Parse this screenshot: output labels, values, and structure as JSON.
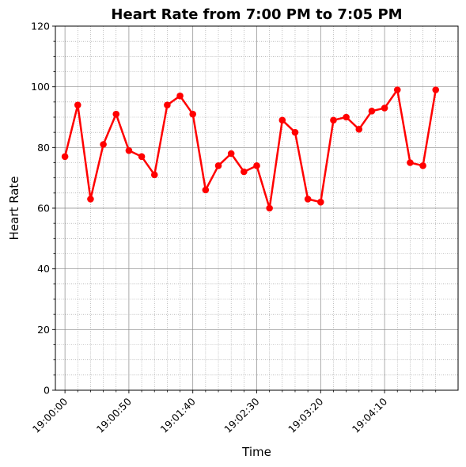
{
  "chart_data": {
    "type": "line",
    "title": "Heart Rate from 7:00 PM to 7:05 PM",
    "xlabel": "Time",
    "ylabel": "Heart Rate",
    "ylim": [
      0,
      120
    ],
    "yticks": [
      0,
      20,
      40,
      60,
      80,
      100,
      120
    ],
    "x_unit": "seconds after 19:00:00",
    "xlim": [
      -7.5,
      307.5
    ],
    "xticks": [
      {
        "value": 0,
        "label": "19:00:00"
      },
      {
        "value": 50,
        "label": "19:00:50"
      },
      {
        "value": 100,
        "label": "19:01:40"
      },
      {
        "value": 150,
        "label": "19:02:30"
      },
      {
        "value": 200,
        "label": "19:03:20"
      },
      {
        "value": 250,
        "label": "19:04:10"
      }
    ],
    "grid": true,
    "line_color": "#ff0000",
    "x": [
      0,
      10,
      20,
      30,
      40,
      50,
      60,
      70,
      80,
      90,
      100,
      110,
      120,
      130,
      140,
      150,
      160,
      170,
      180,
      190,
      200,
      210,
      220,
      230,
      240,
      250,
      260,
      270,
      280,
      290
    ],
    "values": [
      77,
      94,
      63,
      81,
      91,
      79,
      77,
      71,
      94,
      97,
      91,
      66,
      74,
      78,
      72,
      74,
      60,
      89,
      85,
      63,
      62,
      89,
      90,
      86,
      92,
      93,
      99,
      75,
      74,
      99
    ]
  }
}
